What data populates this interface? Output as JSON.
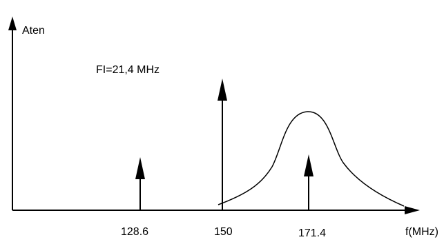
{
  "diagram": {
    "y_axis_label": "Aten",
    "x_axis_label": "f(MHz)",
    "annotation": "FI=21,4 MHz",
    "ticks": [
      {
        "label": "128.6"
      },
      {
        "label": "150"
      },
      {
        "label": "171.4"
      }
    ],
    "colors": {
      "ink": "#000000",
      "background": "#ffffff"
    }
  }
}
